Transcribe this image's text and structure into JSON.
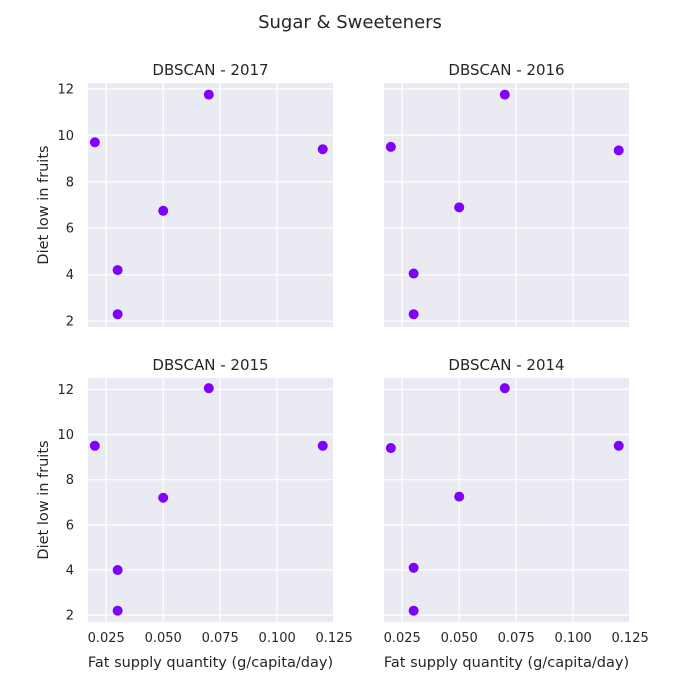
{
  "figure": {
    "title": "Sugar & Sweeteners",
    "background": "#ffffff",
    "panel_background": "#eaeaf2",
    "grid_color": "#ffffff",
    "point_color": "#8000ff"
  },
  "chart_data": [
    {
      "type": "scatter",
      "title": "DBSCAN - 2017",
      "xlabel": "",
      "ylabel": "Diet low in fruits",
      "xlim": [
        0.017,
        0.1245
      ],
      "ylim": [
        1.75,
        12.25
      ],
      "xticks": [
        "",
        "",
        "",
        "",
        ""
      ],
      "yticks": [
        "2",
        "4",
        "6",
        "8",
        "10",
        "12"
      ],
      "grid": true,
      "points": [
        {
          "x": 0.02,
          "y": 9.7
        },
        {
          "x": 0.03,
          "y": 4.2
        },
        {
          "x": 0.03,
          "y": 2.3
        },
        {
          "x": 0.05,
          "y": 6.75
        },
        {
          "x": 0.07,
          "y": 11.75
        },
        {
          "x": 0.12,
          "y": 9.4
        }
      ]
    },
    {
      "type": "scatter",
      "title": "DBSCAN - 2016",
      "xlabel": "",
      "ylabel": "",
      "xlim": [
        0.017,
        0.1245
      ],
      "ylim": [
        1.75,
        12.25
      ],
      "xticks": [
        "",
        "",
        "",
        "",
        ""
      ],
      "yticks": [
        "",
        "",
        "",
        "",
        "",
        ""
      ],
      "grid": true,
      "points": [
        {
          "x": 0.02,
          "y": 9.5
        },
        {
          "x": 0.03,
          "y": 4.05
        },
        {
          "x": 0.03,
          "y": 2.3
        },
        {
          "x": 0.05,
          "y": 6.9
        },
        {
          "x": 0.07,
          "y": 11.75
        },
        {
          "x": 0.12,
          "y": 9.35
        }
      ]
    },
    {
      "type": "scatter",
      "title": "DBSCAN - 2015",
      "xlabel": "Fat supply quantity (g/capita/day)",
      "ylabel": "Diet low in fruits",
      "xlim": [
        0.017,
        0.1245
      ],
      "ylim": [
        1.7,
        12.5
      ],
      "xticks": [
        "0.025",
        "0.050",
        "0.075",
        "0.100",
        "0.125"
      ],
      "yticks": [
        "2",
        "4",
        "6",
        "8",
        "10",
        "12"
      ],
      "grid": true,
      "points": [
        {
          "x": 0.02,
          "y": 9.5
        },
        {
          "x": 0.03,
          "y": 4.0
        },
        {
          "x": 0.03,
          "y": 2.2
        },
        {
          "x": 0.05,
          "y": 7.2
        },
        {
          "x": 0.07,
          "y": 12.05
        },
        {
          "x": 0.12,
          "y": 9.5
        }
      ]
    },
    {
      "type": "scatter",
      "title": "DBSCAN - 2014",
      "xlabel": "Fat supply quantity (g/capita/day)",
      "ylabel": "",
      "xlim": [
        0.017,
        0.1245
      ],
      "ylim": [
        1.7,
        12.5
      ],
      "xticks": [
        "0.025",
        "0.050",
        "0.075",
        "0.100",
        "0.125"
      ],
      "yticks": [
        "",
        "",
        "",
        "",
        "",
        ""
      ],
      "grid": true,
      "points": [
        {
          "x": 0.02,
          "y": 9.4
        },
        {
          "x": 0.03,
          "y": 4.1
        },
        {
          "x": 0.03,
          "y": 2.2
        },
        {
          "x": 0.05,
          "y": 7.25
        },
        {
          "x": 0.07,
          "y": 12.05
        },
        {
          "x": 0.12,
          "y": 9.5
        }
      ]
    }
  ]
}
